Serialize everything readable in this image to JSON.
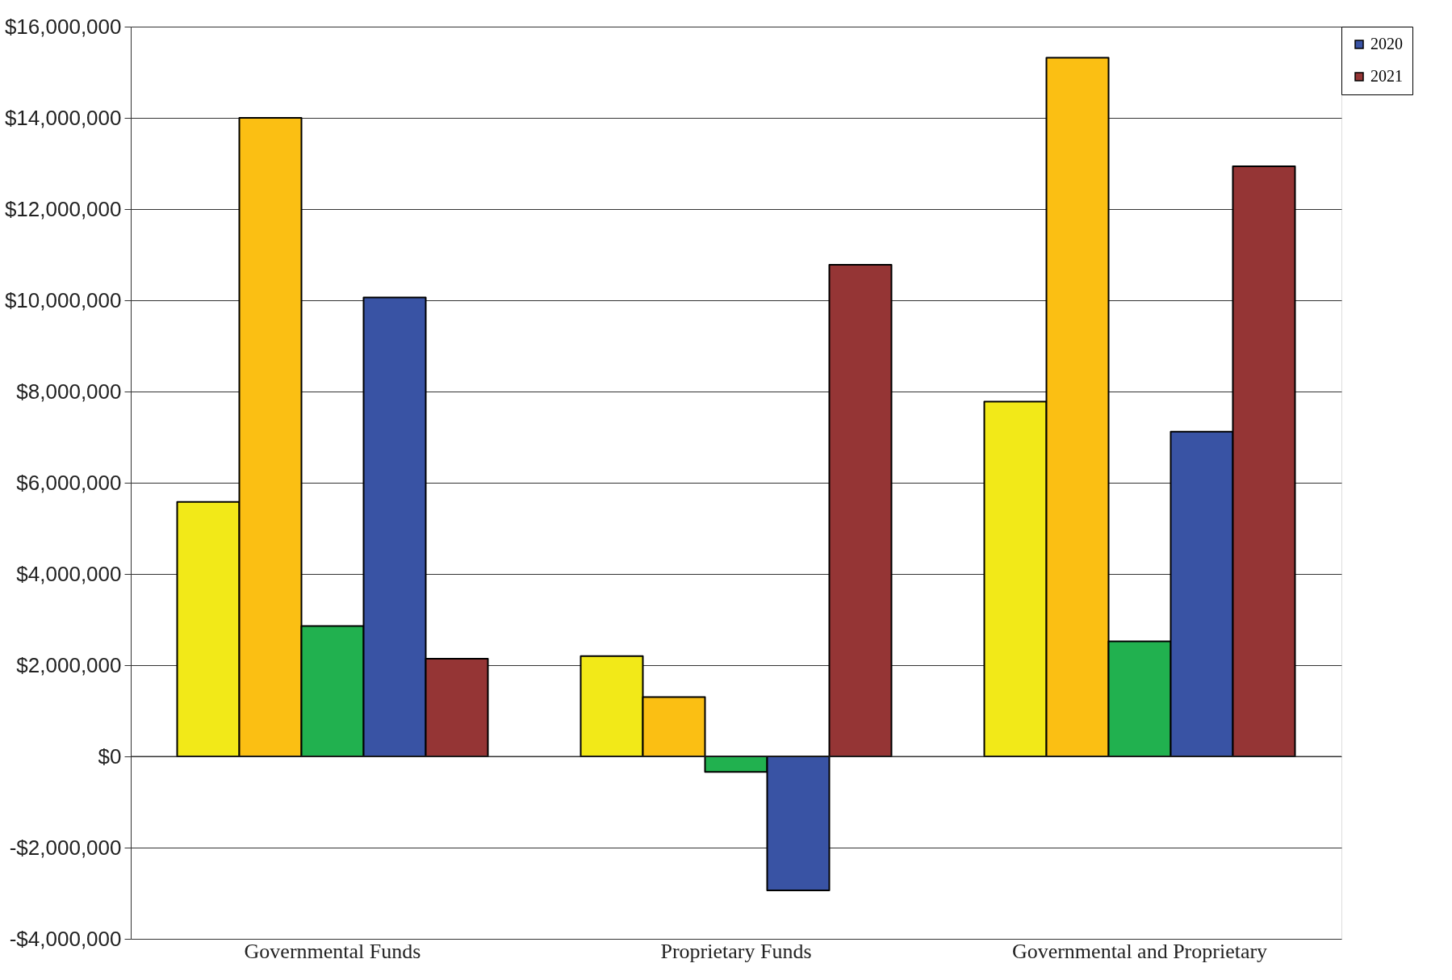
{
  "chart_data": {
    "type": "bar",
    "categories": [
      "Governmental Funds",
      "Proprietary Funds",
      "Governmental and Proprietary"
    ],
    "series": [
      {
        "color": "#f2e918",
        "values": [
          5580000,
          2200000,
          7780000
        ]
      },
      {
        "color": "#fbbf13",
        "values": [
          14000000,
          1300000,
          15320000
        ]
      },
      {
        "color": "#21b14f",
        "values": [
          2860000,
          -340000,
          2520000
        ]
      },
      {
        "name": "2020",
        "color": "#3953a4",
        "values": [
          10060000,
          -2940000,
          7120000
        ]
      },
      {
        "name": "2021",
        "color": "#953535",
        "values": [
          2140000,
          10780000,
          12940000
        ]
      }
    ],
    "ylim": [
      -4000000,
      16000000
    ],
    "yticks": [
      {
        "value": -4000000,
        "label": "-$4,000,000"
      },
      {
        "value": -2000000,
        "label": "-$2,000,000"
      },
      {
        "value": 0,
        "label": "$0"
      },
      {
        "value": 2000000,
        "label": "$2,000,000"
      },
      {
        "value": 4000000,
        "label": "$4,000,000"
      },
      {
        "value": 6000000,
        "label": "$6,000,000"
      },
      {
        "value": 8000000,
        "label": "$8,000,000"
      },
      {
        "value": 10000000,
        "label": "$10,000,000"
      },
      {
        "value": 12000000,
        "label": "$12,000,000"
      },
      {
        "value": 14000000,
        "label": "$14,000,000"
      },
      {
        "value": 16000000,
        "label": "$16,000,000"
      }
    ],
    "grid": "y",
    "legend": "top right"
  }
}
